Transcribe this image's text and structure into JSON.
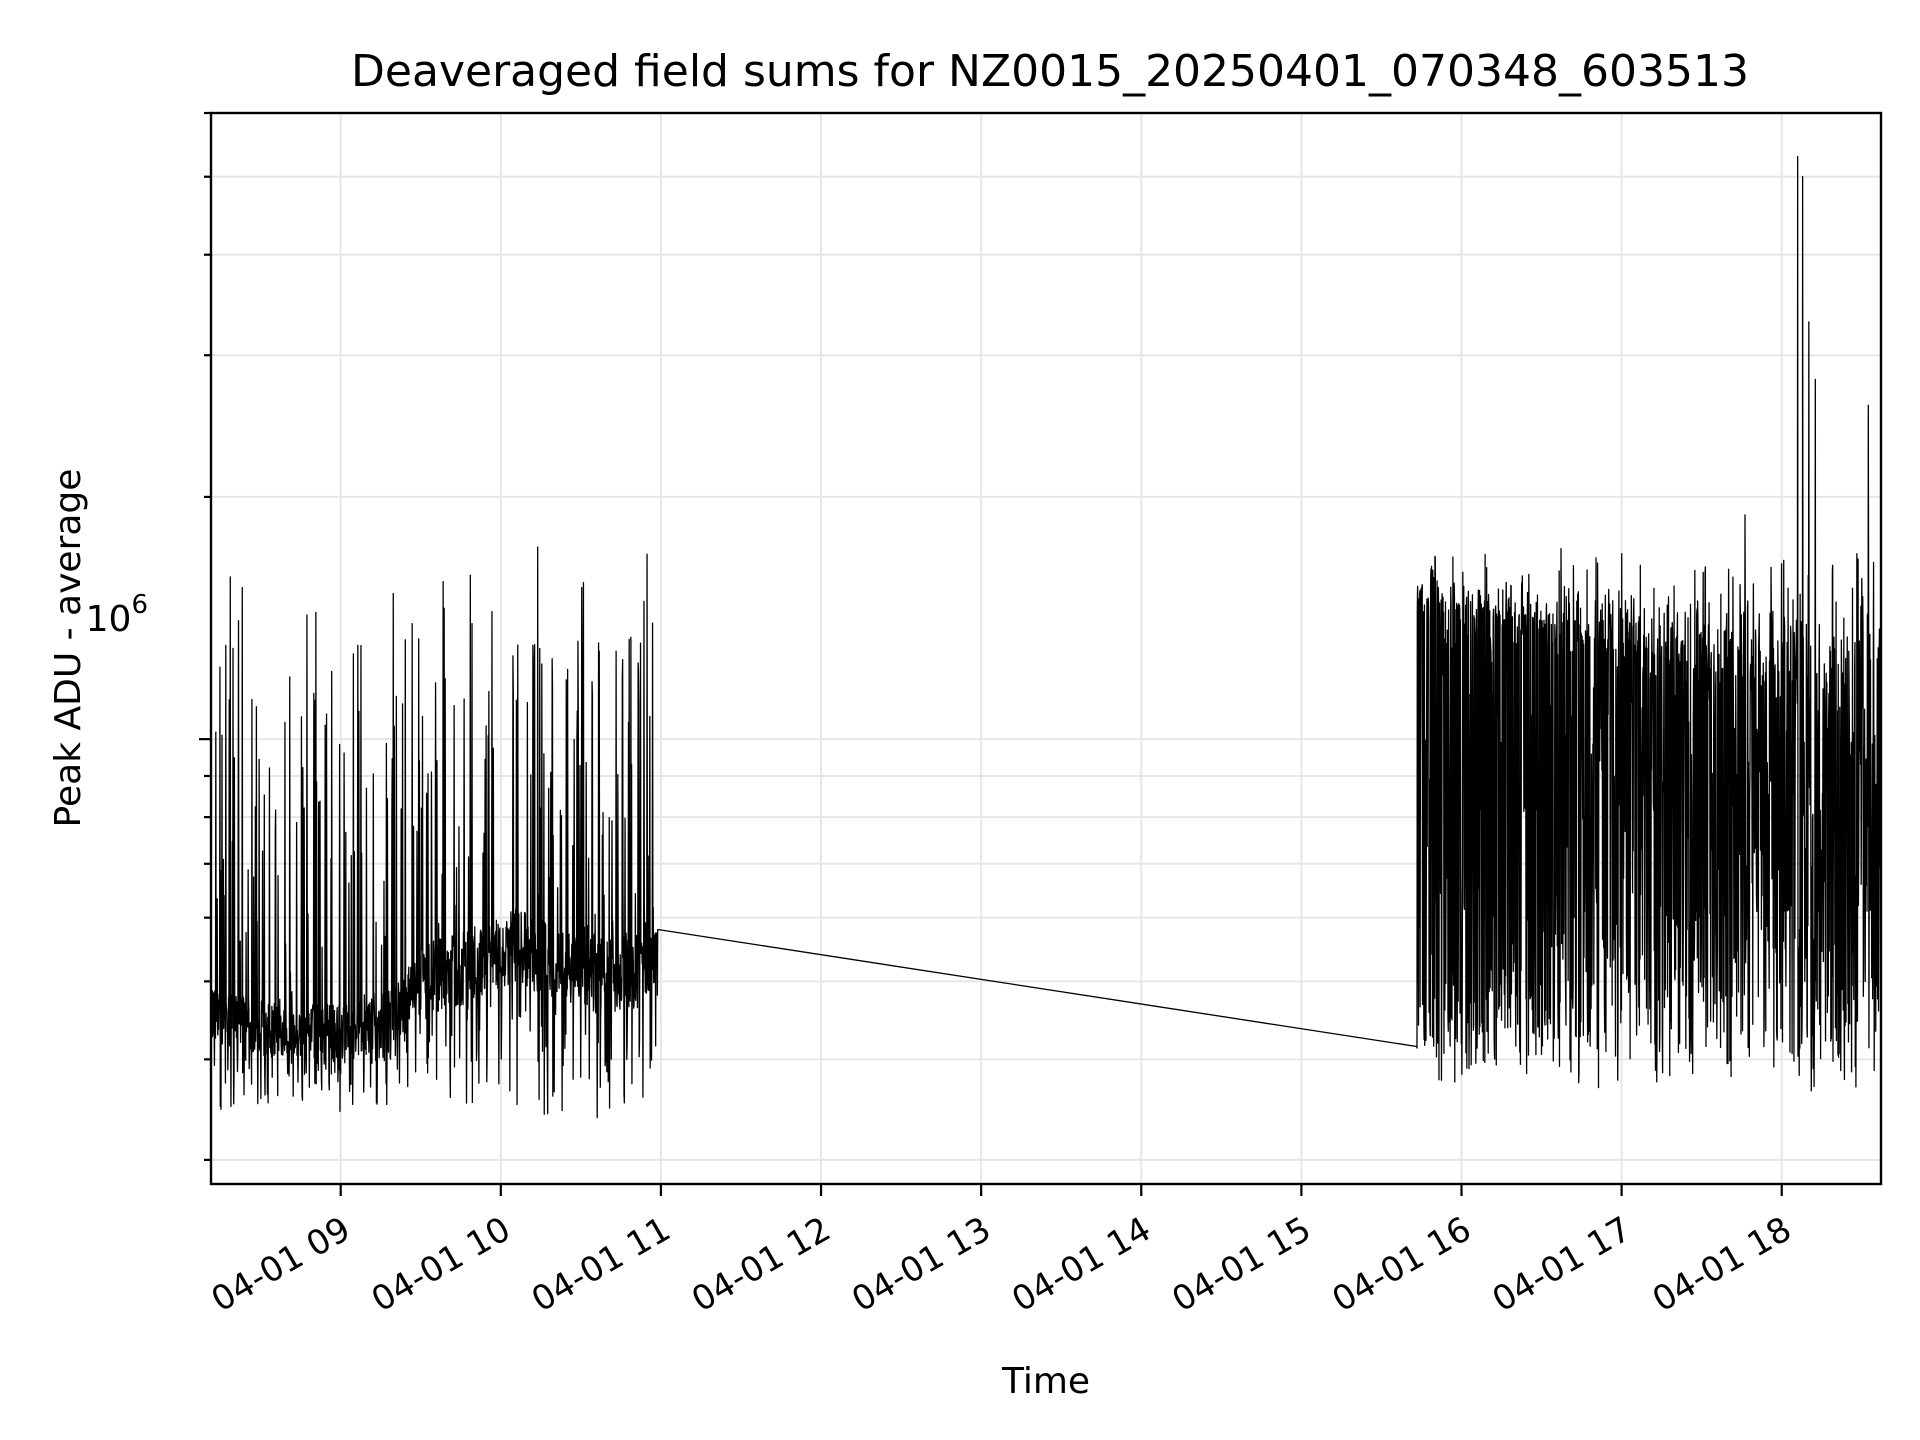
{
  "chart_data": {
    "type": "line",
    "title": "Deaveraged field sums for NZ0015_20250401_070348_603513",
    "xlabel": "Time",
    "ylabel": "Peak ADU - average",
    "x_tick_labels": [
      "04-01 09",
      "04-01 10",
      "04-01 11",
      "04-01 12",
      "04-01 13",
      "04-01 14",
      "04-01 15",
      "04-01 16",
      "04-01 17",
      "04-01 18"
    ],
    "y_scale": "log",
    "y_tick_label_base": "10",
    "y_tick_label_exponent": "6",
    "y_tick_value": 1000000,
    "grid": true,
    "legend": "none",
    "line_color": "#000000",
    "xlim_hours": [
      8.19,
      18.62
    ],
    "ylim": [
      280000,
      6000000
    ],
    "series": [
      {
        "segments": [
          {
            "t_start": 8.19,
            "t_end": 10.98,
            "baseline_low": [
              [
                8.2,
                420000
              ],
              [
                8.6,
                400000
              ],
              [
                9.0,
                395000
              ],
              [
                9.3,
                400000
              ],
              [
                9.55,
                450000
              ],
              [
                9.8,
                470000
              ],
              [
                10.1,
                495000
              ],
              [
                10.5,
                455000
              ],
              [
                10.9,
                460000
              ]
            ],
            "baseline_high": [
              [
                8.2,
                490000
              ],
              [
                8.6,
                470000
              ],
              [
                9.0,
                470000
              ],
              [
                9.3,
                490000
              ],
              [
                9.55,
                560000
              ],
              [
                9.8,
                580000
              ],
              [
                10.1,
                620000
              ],
              [
                10.5,
                570000
              ],
              [
                10.9,
                580000
              ]
            ],
            "spike_max": 1800000,
            "dip_min": 330000,
            "spike_density": 0.16,
            "dip_density": 0.12
          },
          {
            "t_start": 10.98,
            "t_end": 15.72,
            "points": [
              [
                10.98,
                580000
              ],
              [
                15.72,
                415000
              ]
            ]
          },
          {
            "t_start": 15.72,
            "t_end": 18.62,
            "baseline_low": [
              [
                15.75,
                500000
              ],
              [
                16.2,
                520000
              ],
              [
                16.8,
                560000
              ],
              [
                17.5,
                600000
              ],
              [
                18.1,
                620000
              ],
              [
                18.62,
                660000
              ]
            ],
            "baseline_high": [
              [
                15.75,
                1500000
              ],
              [
                16.2,
                1450000
              ],
              [
                16.8,
                1300000
              ],
              [
                17.5,
                1200000
              ],
              [
                18.1,
                1100000
              ],
              [
                18.62,
                900000
              ]
            ],
            "spike_max": 1750000,
            "dip_min": 360000,
            "spike_density": 0.38,
            "dip_density": 0.3,
            "peaks": [
              [
                18.1,
                5300000
              ],
              [
                18.13,
                5000000
              ],
              [
                18.17,
                3300000
              ],
              [
                18.21,
                2800000
              ],
              [
                17.77,
                1900000
              ],
              [
                18.54,
                2600000
              ],
              [
                18.47,
                1700000
              ],
              [
                17.0,
                1700000
              ]
            ]
          }
        ]
      }
    ]
  }
}
